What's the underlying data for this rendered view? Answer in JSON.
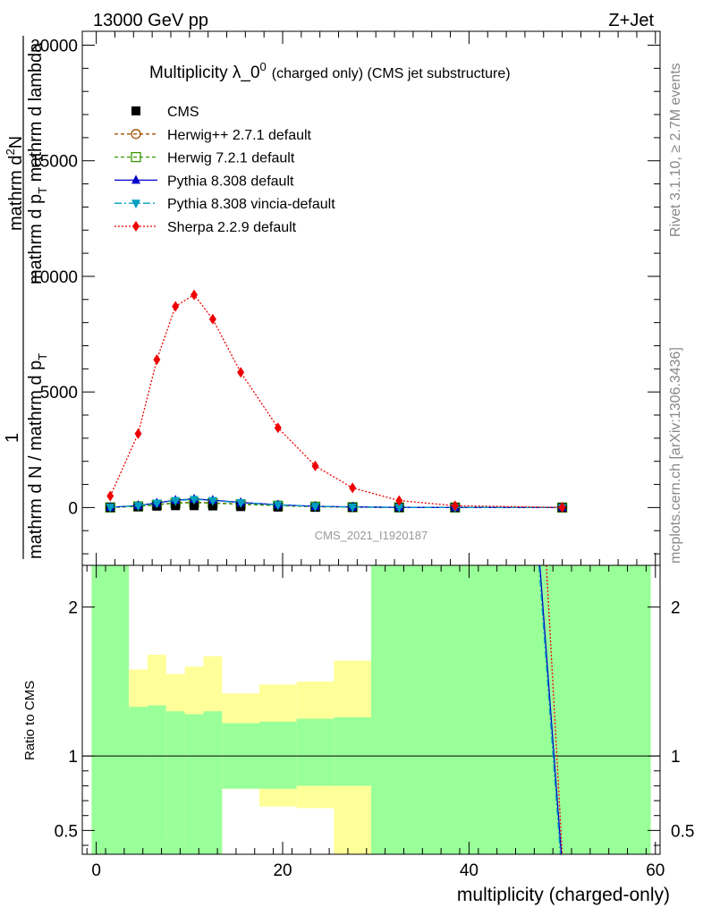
{
  "header": {
    "left": "13000 GeV pp",
    "right": "Z+Jet"
  },
  "side": {
    "rivet": "Rivet 3.1.10, ≥ 2.7M events",
    "mcplots": "mcplots.cern.ch [arXiv:1306.3436]"
  },
  "chart_data": {
    "type": "line",
    "title": "Multiplicity λ_0",
    "title_sup": "0",
    "title_note": "(charged only) (CMS jet substructure)",
    "watermark": "CMS_2021_I1920187",
    "xlabel": "multiplicity (charged-only)",
    "ylabel_top": "mathrm d",
    "ylabel_top_sup": "2",
    "ylabel_top_rest": "N",
    "ylabel_mid": "mathrm d p",
    "ylabel_mid_sub": "T",
    "ylabel_mid_rest": " mathrm d lambda",
    "ylabel_one": "1",
    "ylabel_bot": "mathrm d N / mathrm d p",
    "ylabel_bot_sub": "T",
    "ratio_ylabel": "Ratio to CMS",
    "xlim": [
      -1.5,
      60.5
    ],
    "ylim": [
      -2500,
      20600
    ],
    "ratio_ylim": [
      0.34,
      2.28
    ],
    "xticks": [
      0,
      20,
      40,
      60
    ],
    "yticks": [
      0,
      5000,
      10000,
      15000,
      20000
    ],
    "ratio_yticks": [
      0.5,
      1,
      2
    ],
    "legend": [
      {
        "name": "CMS",
        "color": "#000000",
        "marker": "square-filled",
        "dash": "none"
      },
      {
        "name": "Herwig++ 2.7.1 default",
        "color": "#a05000",
        "marker": "circle-open",
        "dash": "4,3"
      },
      {
        "name": "Herwig 7.2.1 default",
        "color": "#3a9a00",
        "marker": "square-open",
        "dash": "4,3"
      },
      {
        "name": "Pythia 8.308 default",
        "color": "#0000cc",
        "marker": "triangle-up",
        "dash": "none"
      },
      {
        "name": "Pythia 8.308 vincia-default",
        "color": "#00a0c0",
        "marker": "triangle-down",
        "dash": "8,3,2,3"
      },
      {
        "name": "Sherpa 2.2.9 default",
        "color": "#ee0000",
        "marker": "diamond",
        "dash": "2,2"
      }
    ],
    "x": [
      1.5,
      4.5,
      6.5,
      8.5,
      10.5,
      12.5,
      15.5,
      19.5,
      23.5,
      27.5,
      32.5,
      38.5,
      50
    ],
    "series": [
      {
        "name": "CMS",
        "values": [
          0,
          30,
          60,
          80,
          80,
          70,
          40,
          20,
          10,
          5,
          2,
          1,
          0
        ]
      },
      {
        "name": "Herwig++ 2.7.1 default",
        "values": [
          5,
          60,
          130,
          200,
          230,
          200,
          150,
          90,
          40,
          20,
          8,
          3,
          0
        ]
      },
      {
        "name": "Herwig 7.2.1 default",
        "values": [
          5,
          50,
          120,
          190,
          210,
          190,
          140,
          80,
          40,
          18,
          7,
          3,
          0
        ]
      },
      {
        "name": "Pythia 8.308 default",
        "values": [
          10,
          90,
          200,
          320,
          370,
          320,
          220,
          120,
          55,
          25,
          8,
          3,
          0
        ]
      },
      {
        "name": "Pythia 8.308 vincia-default",
        "values": [
          10,
          80,
          190,
          300,
          350,
          300,
          210,
          110,
          50,
          22,
          7,
          3,
          0
        ]
      },
      {
        "name": "Sherpa 2.2.9 default",
        "values": [
          500,
          3200,
          6400,
          8700,
          9200,
          8150,
          5850,
          3450,
          1800,
          850,
          300,
          80,
          5
        ]
      }
    ],
    "ratio_bands": {
      "bins": [
        [
          -0.5,
          3.5
        ],
        [
          3.5,
          5.5
        ],
        [
          5.5,
          7.5
        ],
        [
          7.5,
          9.5
        ],
        [
          9.5,
          11.5
        ],
        [
          11.5,
          13.5
        ],
        [
          13.5,
          17.5
        ],
        [
          17.5,
          21.5
        ],
        [
          21.5,
          25.5
        ],
        [
          25.5,
          29.5
        ],
        [
          29.5,
          35.5
        ],
        [
          35.5,
          41.5
        ],
        [
          41.5,
          59.5
        ]
      ],
      "green_low": [
        0.34,
        0.34,
        0.34,
        0.34,
        0.34,
        0.34,
        0.78,
        0.78,
        0.8,
        0.8,
        0.34,
        0.34,
        0.34
      ],
      "green_high": [
        2.28,
        1.33,
        1.34,
        1.3,
        1.28,
        1.3,
        1.22,
        1.23,
        1.25,
        1.26,
        2.28,
        2.28,
        2.28
      ],
      "yellow_low": [
        0.34,
        0.5,
        0.34,
        0.46,
        0.34,
        0.34,
        0.78,
        0.66,
        0.65,
        0.34,
        0.34,
        0.34,
        0.34
      ],
      "yellow_high": [
        2.28,
        1.58,
        1.68,
        1.55,
        1.6,
        1.67,
        1.42,
        1.48,
        1.5,
        1.64,
        2.28,
        2.28,
        2.28
      ],
      "white_low": [
        0.34,
        0.34,
        0.34,
        0.34,
        0.34,
        0.34,
        0.34,
        0.34,
        0.34,
        0.34,
        0.34,
        0.34,
        0.34
      ],
      "white_high": [
        0.34,
        0.34,
        0.34,
        0.34,
        0.34,
        0.34,
        0.34,
        0.34,
        0.34,
        0.34,
        0.34,
        0.34,
        0.34
      ]
    },
    "ratio_lines": [
      {
        "name": "Sherpa 2.2.9 default",
        "color": "#ee0000",
        "dash": "2,2",
        "points": [
          [
            48.3,
            2.28
          ],
          [
            50.0,
            0.34
          ]
        ]
      },
      {
        "name": "Pythia 8.308 default",
        "color": "#0000cc",
        "dash": "none",
        "points": [
          [
            47.6,
            2.28
          ],
          [
            49.9,
            0.34
          ]
        ]
      },
      {
        "name": "Pythia 8.308 vincia-default",
        "color": "#00a0c0",
        "dash": "8,3,2,3",
        "points": [
          [
            47.5,
            2.28
          ],
          [
            49.8,
            0.34
          ]
        ]
      }
    ]
  }
}
